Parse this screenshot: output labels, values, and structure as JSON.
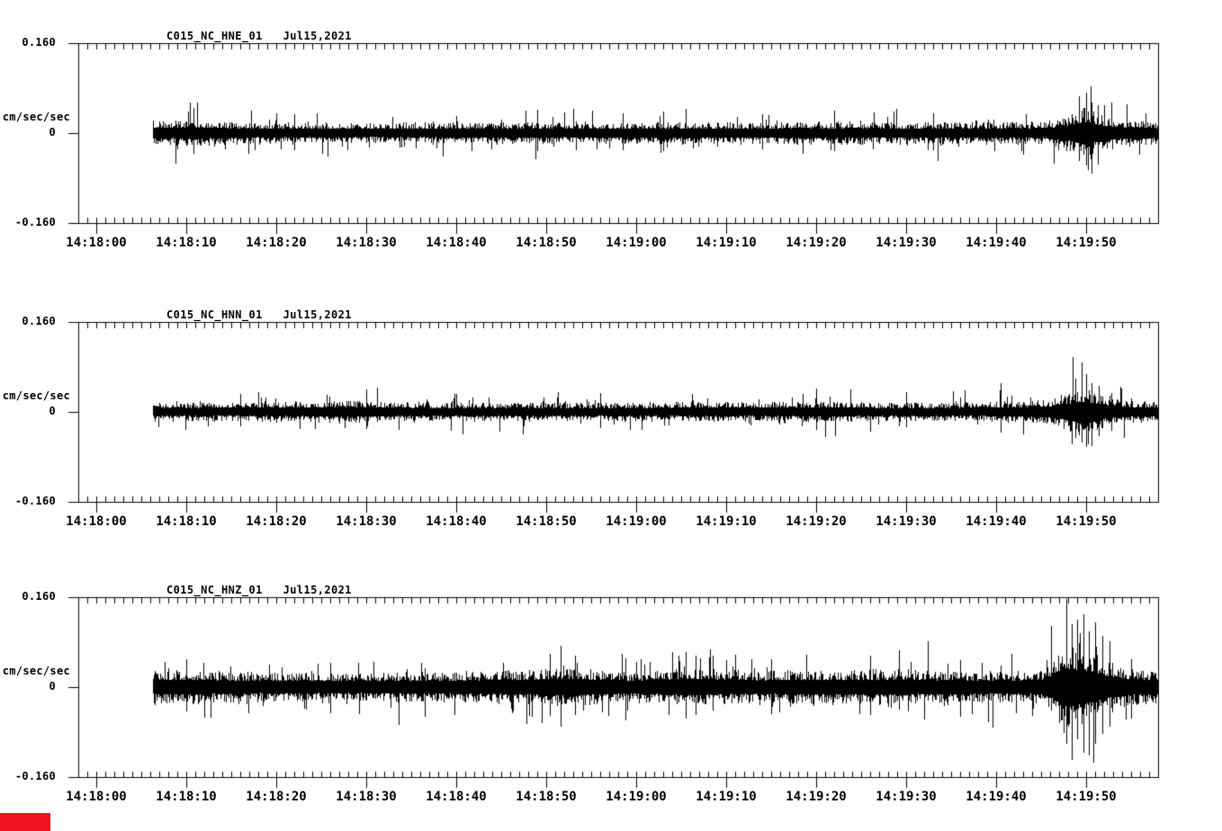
{
  "page": {
    "background": "#ffffff",
    "ink": "#000000"
  },
  "red_marker": {
    "color": "#ee1122"
  },
  "chart_data": [
    {
      "type": "line",
      "kind": "seismogram-trace",
      "title": "C015_NC_HNE_01   Jul15,2021",
      "station": "C015",
      "network": "NC",
      "channel": "HNE",
      "location_code": "01",
      "date": "Jul15,2021",
      "units": "cm/sec/sec",
      "ylim": [
        -0.16,
        0.16
      ],
      "yticks": [
        0.16,
        0,
        -0.16
      ],
      "y_tick_labels": [
        "0.160",
        "0",
        "-0.160"
      ],
      "time_window": [
        "14:17:58",
        "14:19:58"
      ],
      "x_major_interval_sec": 10,
      "x_minor_interval_sec": 1,
      "x_tick_labels": [
        "14:18:00",
        "14:18:10",
        "14:18:20",
        "14:18:30",
        "14:18:40",
        "14:18:50",
        "14:19:00",
        "14:19:10",
        "14:19:20",
        "14:19:30",
        "14:19:40",
        "14:19:50"
      ],
      "trace_color": "#000000",
      "noise_envelope": [
        [
          0,
          0.017
        ],
        [
          10,
          0.02
        ],
        [
          14,
          0.021
        ],
        [
          20,
          0.017
        ],
        [
          35,
          0.016
        ],
        [
          50,
          0.018
        ],
        [
          58,
          0.016
        ],
        [
          65,
          0.019
        ],
        [
          72,
          0.017
        ],
        [
          84,
          0.019
        ],
        [
          92,
          0.017
        ],
        [
          100,
          0.018
        ],
        [
          106,
          0.018
        ],
        [
          108,
          0.021
        ],
        [
          110,
          0.03
        ],
        [
          111.5,
          0.042
        ],
        [
          112.5,
          0.04
        ],
        [
          114,
          0.028
        ],
        [
          116,
          0.022
        ],
        [
          120,
          0.019
        ]
      ],
      "spikes": [
        [
          12.8,
          0.045,
          0.036
        ],
        [
          24,
          0.034,
          0.03
        ],
        [
          51,
          0.042,
          0.032
        ],
        [
          60.5,
          0.036,
          0.03
        ],
        [
          65,
          0.038,
          0.032
        ],
        [
          76,
          0.034,
          0.028
        ],
        [
          84,
          0.04,
          0.032
        ],
        [
          95,
          0.036,
          0.03
        ],
        [
          111.2,
          0.065,
          0.05
        ],
        [
          112,
          0.072,
          0.058
        ],
        [
          112.6,
          0.055,
          0.071
        ],
        [
          113.3,
          0.05,
          0.055
        ]
      ],
      "seed": 11
    },
    {
      "type": "line",
      "kind": "seismogram-trace",
      "title": "C015_NC_HNN_01   Jul15,2021",
      "station": "C015",
      "network": "NC",
      "channel": "HNN",
      "location_code": "01",
      "date": "Jul15,2021",
      "units": "cm/sec/sec",
      "ylim": [
        -0.16,
        0.16
      ],
      "yticks": [
        0.16,
        0,
        -0.16
      ],
      "y_tick_labels": [
        "0.160",
        "0",
        "-0.160"
      ],
      "time_window": [
        "14:17:58",
        "14:19:58"
      ],
      "x_major_interval_sec": 10,
      "x_minor_interval_sec": 1,
      "x_tick_labels": [
        "14:18:00",
        "14:18:10",
        "14:18:20",
        "14:18:30",
        "14:18:40",
        "14:18:50",
        "14:19:00",
        "14:19:10",
        "14:19:20",
        "14:19:30",
        "14:19:40",
        "14:19:50"
      ],
      "trace_color": "#000000",
      "noise_envelope": [
        [
          0,
          0.015
        ],
        [
          15,
          0.016
        ],
        [
          30,
          0.018
        ],
        [
          40,
          0.015
        ],
        [
          55,
          0.015
        ],
        [
          70,
          0.016
        ],
        [
          82,
          0.017
        ],
        [
          92,
          0.015
        ],
        [
          100,
          0.016
        ],
        [
          104,
          0.018
        ],
        [
          108,
          0.02
        ],
        [
          110,
          0.032
        ],
        [
          111.5,
          0.04
        ],
        [
          112.5,
          0.036
        ],
        [
          114,
          0.026
        ],
        [
          116,
          0.02
        ],
        [
          120,
          0.017
        ]
      ],
      "spikes": [
        [
          18,
          0.032,
          0.026
        ],
        [
          32,
          0.04,
          0.03
        ],
        [
          58,
          0.034,
          0.028
        ],
        [
          82,
          0.042,
          0.032
        ],
        [
          92,
          0.036,
          0.026
        ],
        [
          102.5,
          0.052,
          0.036
        ],
        [
          110.8,
          0.06,
          0.046
        ],
        [
          111.5,
          0.088,
          0.055
        ],
        [
          112,
          0.068,
          0.062
        ],
        [
          112.6,
          0.052,
          0.06
        ],
        [
          113.4,
          0.046,
          0.044
        ]
      ],
      "seed": 22
    },
    {
      "type": "line",
      "kind": "seismogram-trace",
      "title": "C015_NC_HNZ_01   Jul15,2021",
      "station": "C015",
      "network": "NC",
      "channel": "HNZ",
      "location_code": "01",
      "date": "Jul15,2021",
      "units": "cm/sec/sec",
      "ylim": [
        -0.16,
        0.16
      ],
      "yticks": [
        0.16,
        0,
        -0.16
      ],
      "y_tick_labels": [
        "0.160",
        "0",
        "-0.160"
      ],
      "time_window": [
        "14:17:58",
        "14:19:58"
      ],
      "x_major_interval_sec": 10,
      "x_minor_interval_sec": 1,
      "x_tick_labels": [
        "14:18:00",
        "14:18:10",
        "14:18:20",
        "14:18:30",
        "14:18:40",
        "14:18:50",
        "14:19:00",
        "14:19:10",
        "14:19:20",
        "14:19:30",
        "14:19:40",
        "14:19:50"
      ],
      "trace_color": "#000000",
      "noise_envelope": [
        [
          0,
          0.024
        ],
        [
          8,
          0.027
        ],
        [
          12,
          0.028
        ],
        [
          20,
          0.024
        ],
        [
          32,
          0.024
        ],
        [
          42,
          0.025
        ],
        [
          50,
          0.028
        ],
        [
          53,
          0.033
        ],
        [
          56,
          0.03
        ],
        [
          62,
          0.025
        ],
        [
          67,
          0.031
        ],
        [
          70,
          0.03
        ],
        [
          75,
          0.026
        ],
        [
          81,
          0.028
        ],
        [
          88,
          0.029
        ],
        [
          91,
          0.03
        ],
        [
          96,
          0.026
        ],
        [
          103,
          0.026
        ],
        [
          107,
          0.027
        ],
        [
          108.5,
          0.05
        ],
        [
          109.5,
          0.075
        ],
        [
          110.5,
          0.07
        ],
        [
          111.5,
          0.066
        ],
        [
          112.5,
          0.06
        ],
        [
          113.5,
          0.05
        ],
        [
          114.5,
          0.04
        ],
        [
          116,
          0.033
        ],
        [
          118,
          0.029
        ],
        [
          120,
          0.027
        ]
      ],
      "spikes": [
        [
          12,
          0.05,
          0.042
        ],
        [
          28,
          0.044,
          0.046
        ],
        [
          52.4,
          0.06,
          0.05
        ],
        [
          53.6,
          0.074,
          0.07
        ],
        [
          55.2,
          0.056,
          0.05
        ],
        [
          60.8,
          0.052,
          0.058
        ],
        [
          67.5,
          0.062,
          0.056
        ],
        [
          68.6,
          0.056,
          0.05
        ],
        [
          70.5,
          0.056,
          0.042
        ],
        [
          77,
          0.05,
          0.048
        ],
        [
          88,
          0.056,
          0.05
        ],
        [
          91.2,
          0.066,
          0.04
        ],
        [
          98,
          0.048,
          0.052
        ],
        [
          109.8,
          0.158,
          0.1
        ],
        [
          110.4,
          0.112,
          0.13
        ],
        [
          111,
          0.12,
          0.092
        ],
        [
          111.7,
          0.13,
          0.116
        ],
        [
          112.3,
          0.1,
          0.12
        ],
        [
          113,
          0.116,
          0.1
        ],
        [
          113.8,
          0.092,
          0.082
        ],
        [
          114.6,
          0.082,
          0.07
        ],
        [
          117,
          0.05,
          0.055
        ]
      ],
      "seed": 33
    }
  ]
}
